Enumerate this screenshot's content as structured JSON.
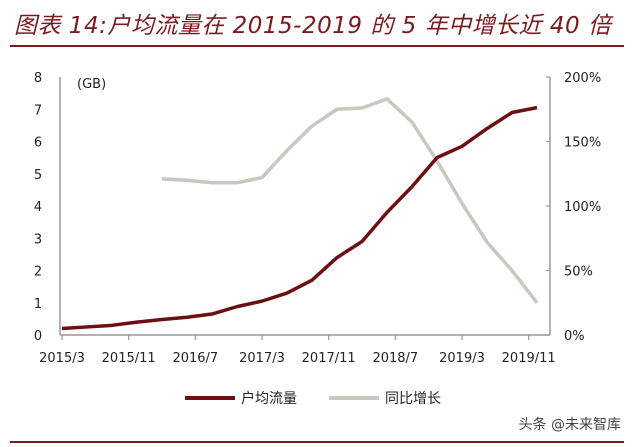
{
  "header": {
    "title": "图表 14:户均流量在 2015-2019 的 5 年中增长近 40 倍"
  },
  "legend": {
    "series1": "户均流量",
    "series2": "同比增长"
  },
  "watermark": "头条 @未来智库",
  "colors": {
    "title": "#7a1a1f",
    "series1": "#6b0f12",
    "series2": "#c8c8c0"
  },
  "chart_data": {
    "type": "line",
    "title": "户均流量在 2015-2019 的 5 年中增长近 40 倍",
    "ylabel_left": "(GB)",
    "ylim_left": [
      0,
      8
    ],
    "yticks_left": [
      "0",
      "1",
      "2",
      "3",
      "4",
      "5",
      "6",
      "7",
      "8"
    ],
    "ylim_right": [
      0,
      200
    ],
    "yticks_right": [
      "0%",
      "50%",
      "100%",
      "150%",
      "200%"
    ],
    "xticks": [
      "2015/3",
      "2015/11",
      "2016/7",
      "2017/3",
      "2017/11",
      "2018/7",
      "2019/3",
      "2019/11"
    ],
    "x": [
      "2015/3",
      "2015/6",
      "2015/9",
      "2015/12",
      "2016/3",
      "2016/6",
      "2016/9",
      "2016/12",
      "2017/3",
      "2017/6",
      "2017/9",
      "2017/12",
      "2018/3",
      "2018/6",
      "2018/9",
      "2018/12",
      "2019/3",
      "2019/6",
      "2019/9",
      "2019/12"
    ],
    "series": [
      {
        "name": "户均流量",
        "axis": "left",
        "values": [
          0.2,
          0.25,
          0.3,
          0.4,
          0.48,
          0.55,
          0.65,
          0.88,
          1.05,
          1.3,
          1.7,
          2.4,
          2.9,
          3.8,
          4.6,
          5.5,
          5.85,
          6.4,
          6.9,
          7.05
        ]
      },
      {
        "name": "同比增长",
        "axis": "right",
        "values": [
          null,
          null,
          null,
          null,
          121,
          120,
          118,
          118,
          122,
          143,
          162,
          175,
          176,
          183,
          165,
          135,
          102,
          72,
          50,
          25
        ]
      }
    ],
    "legend_position": "bottom",
    "grid": false
  }
}
